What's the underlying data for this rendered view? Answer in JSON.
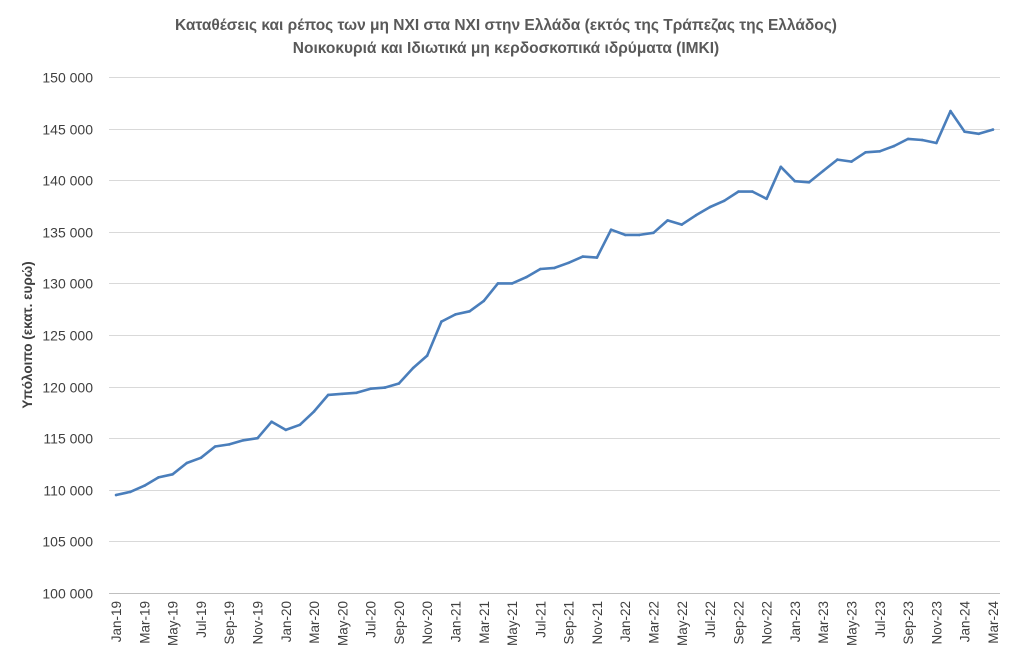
{
  "chart_data": {
    "type": "line",
    "title": [
      "Καταθέσεις και ρέπος των μη ΝΧΙ στα ΝΧΙ στην Ελλάδα (εκτός της Τράπεζας της Ελλάδος)",
      "Νοικοκυριά και Ιδιωτικά μη κερδοσκοπικά ιδρύματα (ΙΜΚΙ)"
    ],
    "xlabel": "",
    "ylabel": "Υπόλοιπο (εκατ. ευρώ)",
    "ylim": [
      100000,
      150000
    ],
    "ytick_step": 5000,
    "yticks": [
      "100 000",
      "105 000",
      "110 000",
      "115 000",
      "120 000",
      "125 000",
      "130 000",
      "135 000",
      "140 000",
      "145 000",
      "150 000"
    ],
    "grid": true,
    "legend": "none",
    "x": [
      "Jan-19",
      "Feb-19",
      "Mar-19",
      "Apr-19",
      "May-19",
      "Jun-19",
      "Jul-19",
      "Aug-19",
      "Sep-19",
      "Oct-19",
      "Nov-19",
      "Dec-19",
      "Jan-20",
      "Feb-20",
      "Mar-20",
      "Apr-20",
      "May-20",
      "Jun-20",
      "Jul-20",
      "Aug-20",
      "Sep-20",
      "Oct-20",
      "Nov-20",
      "Dec-20",
      "Jan-21",
      "Feb-21",
      "Mar-21",
      "Apr-21",
      "May-21",
      "Jun-21",
      "Jul-21",
      "Aug-21",
      "Sep-21",
      "Oct-21",
      "Nov-21",
      "Dec-21",
      "Jan-22",
      "Feb-22",
      "Mar-22",
      "Apr-22",
      "May-22",
      "Jun-22",
      "Jul-22",
      "Aug-22",
      "Sep-22",
      "Oct-22",
      "Nov-22",
      "Dec-22",
      "Jan-23",
      "Feb-23",
      "Mar-23",
      "Apr-23",
      "May-23",
      "Jun-23",
      "Jul-23",
      "Aug-23",
      "Sep-23",
      "Oct-23",
      "Nov-23",
      "Dec-23",
      "Jan-24",
      "Feb-24",
      "Mar-24"
    ],
    "xtick_labels": [
      "Jan-19",
      "Mar-19",
      "May-19",
      "Jul-19",
      "Sep-19",
      "Nov-19",
      "Jan-20",
      "Mar-20",
      "May-20",
      "Jul-20",
      "Sep-20",
      "Nov-20",
      "Jan-21",
      "Mar-21",
      "May-21",
      "Jul-21",
      "Sep-21",
      "Nov-21",
      "Jan-22",
      "Mar-22",
      "May-22",
      "Jul-22",
      "Sep-22",
      "Nov-22",
      "Jan-23",
      "Mar-23",
      "May-23",
      "Jul-23",
      "Sep-23",
      "Nov-23",
      "Jan-24",
      "Mar-24"
    ],
    "series": [
      {
        "color": "#4a7ebb",
        "values": [
          109500,
          109800,
          110400,
          111200,
          111500,
          112600,
          113100,
          114200,
          114400,
          114800,
          115000,
          116600,
          115800,
          116300,
          117600,
          119200,
          119300,
          119400,
          119800,
          119900,
          120300,
          121800,
          123000,
          126300,
          127000,
          127300,
          128300,
          130000,
          130000,
          130600,
          131400,
          131500,
          132000,
          132600,
          132500,
          135200,
          134700,
          134700,
          134900,
          136100,
          135700,
          136600,
          137400,
          138000,
          138900,
          138900,
          138200,
          141300,
          139900,
          139800,
          140900,
          142000,
          141800,
          142700,
          142800,
          143300,
          144000,
          143900,
          143600,
          146700,
          144700,
          144500,
          144900
        ]
      }
    ]
  }
}
